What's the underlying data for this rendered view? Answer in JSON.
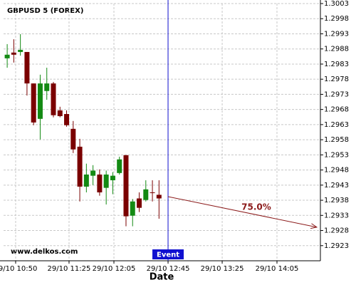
{
  "chart_data": {
    "type": "candlestick",
    "title": "GBPUSD 5 (FOREX)",
    "watermark": "www.delkos.com",
    "x_label": "Date",
    "up_color": "#138a13",
    "down_color": "#7a0000",
    "grid": true,
    "open": [
      1.29849,
      1.29868,
      1.2987,
      1.2987,
      1.29766,
      1.29649,
      1.29741,
      1.29766,
      1.29677,
      1.29665,
      1.29616,
      1.29557,
      1.29425,
      1.29461,
      1.29465,
      1.29421,
      1.29446,
      1.2947,
      1.29529,
      1.29329,
      1.29386,
      1.29381,
      1.29406,
      1.29398
    ],
    "high": [
      1.29896,
      1.29912,
      1.29929,
      1.2987,
      1.29766,
      1.29795,
      1.29818,
      1.29771,
      1.29689,
      1.29677,
      1.29642,
      1.29583,
      1.29501,
      1.29496,
      1.29482,
      1.29478,
      1.29473,
      1.29524,
      1.29529,
      1.29384,
      1.29406,
      1.29446,
      1.29446,
      1.29446
    ],
    "low": [
      1.29818,
      1.29835,
      1.29858,
      1.29726,
      1.29628,
      1.29581,
      1.29712,
      1.29654,
      1.29654,
      1.29623,
      1.29536,
      1.29376,
      1.29406,
      1.2943,
      1.29395,
      1.29366,
      1.294,
      1.29465,
      1.29294,
      1.29294,
      1.29341,
      1.29376,
      1.29376,
      1.29319
    ],
    "close": [
      1.29861,
      1.29861,
      1.29877,
      1.29766,
      1.29637,
      1.29766,
      1.29766,
      1.29661,
      1.29658,
      1.29628,
      1.29548,
      1.29425,
      1.29465,
      1.29478,
      1.29406,
      1.29465,
      1.29461,
      1.29515,
      1.29327,
      1.29376,
      1.29355,
      1.29416,
      1.29406,
      1.29386
    ],
    "xlim": [
      -0.55,
      47.45
    ],
    "xticks": [
      {
        "value": 1.28,
        "label": "29/10 10:50"
      },
      {
        "value": 9.37,
        "label": "29/10 11:25"
      },
      {
        "value": 16.17,
        "label": "29/10 12:05"
      },
      {
        "value": 24.37,
        "label": "29/10 12:45"
      },
      {
        "value": 32.57,
        "label": "29/10 13:25"
      },
      {
        "value": 40.87,
        "label": "29/10 14:05"
      }
    ],
    "ylim": [
      1.2918,
      1.3003
    ],
    "yticks": [
      1.3003,
      1.2998,
      1.2993,
      1.2988,
      1.2983,
      1.2978,
      1.2973,
      1.2968,
      1.2963,
      1.2958,
      1.2953,
      1.2948,
      1.2943,
      1.2938,
      1.2933,
      1.2928,
      1.2923
    ],
    "event": {
      "x": 24.37,
      "label": "Event",
      "color": "#1010d0"
    },
    "projection": {
      "x": [
        24.37,
        46.9
      ],
      "y": [
        1.29392,
        1.29291
      ],
      "label": "75.0%",
      "color": "#8b1a1a"
    }
  }
}
